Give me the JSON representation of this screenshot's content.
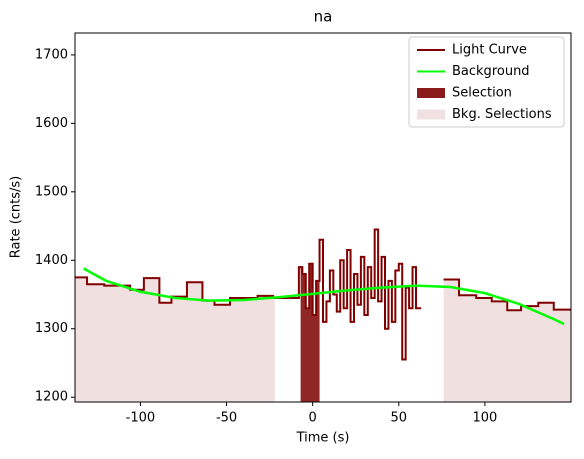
{
  "chart_data": {
    "type": "line",
    "title": "na",
    "x_label": "Time (s)",
    "y_label": "Rate (cnts/s)",
    "xlim": [
      -138,
      150
    ],
    "ylim": [
      1193,
      1732
    ],
    "xticks": [
      -100,
      -50,
      0,
      50,
      100
    ],
    "yticks": [
      1200,
      1300,
      1400,
      1500,
      1600,
      1700
    ],
    "legend": "upper right",
    "series": [
      {
        "name": "Light Curve",
        "color": "#800000",
        "step": "post",
        "x": [
          -138,
          -131,
          -121,
          -106,
          -98,
          -89,
          -82,
          -73,
          -64,
          -57,
          -48,
          -32,
          -23,
          -8,
          -6,
          -4,
          -2,
          0,
          2,
          4,
          6,
          8,
          10,
          12,
          14,
          16,
          18,
          20,
          22,
          24,
          26,
          28,
          30,
          32,
          34,
          36,
          38,
          40,
          42,
          44,
          46,
          48,
          50,
          52,
          54,
          56,
          58,
          60,
          63,
          76,
          85,
          95,
          104,
          113,
          121,
          131,
          140
        ],
        "values": [
          1375,
          1365,
          1363,
          1357,
          1374,
          1338,
          1347,
          1368,
          1341,
          1335,
          1345,
          1348,
          1345,
          1390,
          1380,
          1330,
          1395,
          1320,
          1370,
          1430,
          1310,
          1340,
          1385,
          1350,
          1325,
          1400,
          1330,
          1415,
          1310,
          1380,
          1335,
          1405,
          1320,
          1390,
          1345,
          1445,
          1340,
          1405,
          1300,
          1370,
          1310,
          1385,
          1395,
          1255,
          1360,
          1330,
          1390,
          1330,
          null,
          1372,
          1349,
          1345,
          1340,
          1327,
          1333,
          1338,
          1328
        ]
      },
      {
        "name": "Background",
        "color": "#00ff00",
        "x": [
          -133,
          -120,
          -100,
          -80,
          -60,
          -40,
          -20,
          0,
          20,
          40,
          60,
          80,
          100,
          120,
          140,
          146
        ],
        "values": [
          1388,
          1370,
          1354,
          1345,
          1341,
          1342,
          1346,
          1351,
          1356,
          1360,
          1363,
          1361,
          1352,
          1336,
          1314,
          1307
        ]
      }
    ],
    "spans": [
      {
        "name": "Selection",
        "color": "#8b1a1a",
        "ranges": [
          [
            -7,
            4
          ]
        ]
      },
      {
        "name": "Bkg. Selections",
        "color": "#f0e0e0",
        "ranges": [
          [
            -138,
            -22
          ],
          [
            76,
            150
          ]
        ]
      }
    ]
  }
}
